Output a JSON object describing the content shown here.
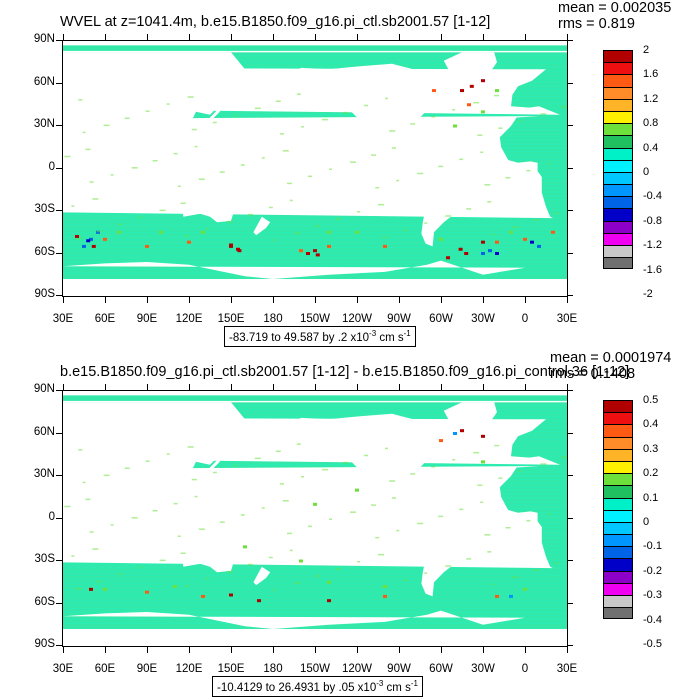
{
  "panels": [
    {
      "title": "WVEL at z=1041.4m, b.e15.B1850.f09_g16.pi_ctl.sb2001.57 [1-12]",
      "mean": "mean = 0.002035",
      "rms": "rms = 0.819",
      "info_prefix": "-83.719 to 49.587 by .2 x10",
      "info_exp": "-3",
      "info_mid": " cm s",
      "info_unit_exp": "-1",
      "colorbar_labels": [
        "2",
        "1.6",
        "1.2",
        "0.8",
        "0.4",
        "0",
        "-0.4",
        "-0.8",
        "-1.2",
        "-1.6",
        "-2"
      ]
    },
    {
      "title": "b.e15.B1850.f09_g16.pi_ctl.sb2001.57 [1-12] - b.e15.B1850.f09_g16.pi_control.36 [1-12]",
      "mean": "mean = 0.0001974",
      "rms": "rms = 0.1408",
      "info_prefix": "-10.4129 to 26.4931 by .05 x10",
      "info_exp": "-3",
      "info_mid": " cm s",
      "info_unit_exp": "-1",
      "colorbar_labels": [
        "0.5",
        "0.4",
        "0.3",
        "0.2",
        "0.1",
        "0",
        "-0.1",
        "-0.2",
        "-0.3",
        "-0.4",
        "-0.5"
      ]
    }
  ],
  "y_labels": [
    "90N",
    "60N",
    "30N",
    "0",
    "30S",
    "60S",
    "90S"
  ],
  "x_labels": [
    "30E",
    "60E",
    "90E",
    "120E",
    "150E",
    "180",
    "150W",
    "120W",
    "90W",
    "60W",
    "30W",
    "0",
    "30E"
  ],
  "colors": {
    "ocean": "#33e8a8",
    "ocean_light": "#22f0c0",
    "land": "#ffffff",
    "cmap": [
      "#b00000",
      "#ee1010",
      "#ff5a14",
      "#ff8c28",
      "#ffb428",
      "#fff000",
      "#6ee03c",
      "#20c060",
      "#00f0c8",
      "#00f0ff",
      "#00c8ff",
      "#0096ff",
      "#0064e6",
      "#0000c8",
      "#8c00c8",
      "#f000f0",
      "#c8c8c8",
      "#707070"
    ]
  }
}
